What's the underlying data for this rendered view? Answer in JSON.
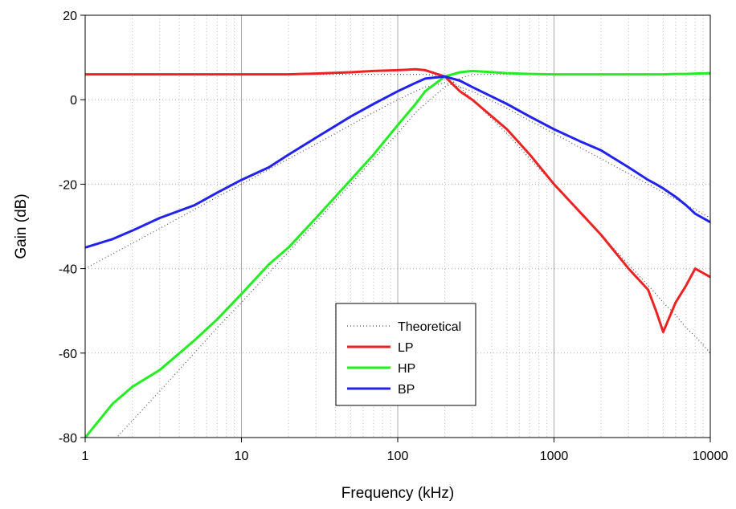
{
  "chart_data": {
    "type": "line",
    "x_label": "Frequency (kHz)",
    "y_label": "Gain (dB)",
    "x": [
      1,
      1.5,
      2,
      3,
      5,
      7,
      10,
      15,
      20,
      30,
      50,
      70,
      100,
      130,
      150,
      200,
      250,
      300,
      500,
      700,
      1000,
      1500,
      2000,
      3000,
      4000,
      4500,
      5000,
      6000,
      7000,
      8000,
      10000
    ],
    "xlim": [
      1,
      10000
    ],
    "xticks": [
      1,
      10,
      100,
      1000,
      10000
    ],
    "xscale": "log",
    "ylim": [
      -80,
      20
    ],
    "yticks": [
      -80,
      -60,
      -40,
      -20,
      0,
      20
    ],
    "grid": true,
    "legend": "lower center",
    "theoretical": {
      "name": "Theoretical",
      "color": "#555555",
      "curves": [
        [
          6,
          6,
          6,
          6,
          6,
          6,
          6,
          6,
          6,
          6,
          6,
          6,
          6,
          6,
          6,
          5.5,
          3,
          0,
          -8,
          -14,
          -20,
          -27,
          -32,
          -39,
          -44,
          -46,
          -48,
          -51,
          -54,
          -56,
          -60
        ],
        [
          -88,
          -81,
          -76,
          -69,
          -60,
          -54,
          -48,
          -41,
          -36,
          -29,
          -20,
          -14,
          -8,
          -3,
          -1,
          3,
          5,
          6,
          6,
          6,
          6,
          6,
          6,
          6,
          6,
          6,
          6,
          6,
          6,
          6,
          6
        ],
        [
          -40,
          -36.5,
          -34,
          -30.5,
          -26,
          -23,
          -20,
          -16.5,
          -14,
          -10.5,
          -6,
          -3,
          0,
          2,
          3,
          4,
          3,
          2,
          -2,
          -5,
          -8,
          -11.5,
          -14,
          -17.5,
          -20,
          -21,
          -22,
          -23.5,
          -25,
          -26,
          -28
        ]
      ]
    },
    "series": [
      {
        "name": "LP",
        "color": "#ee2222",
        "values": [
          6,
          6,
          6,
          6,
          6,
          6,
          6,
          6,
          6,
          6.2,
          6.5,
          6.8,
          7,
          7.2,
          7,
          5.5,
          2,
          0,
          -7,
          -13,
          -20,
          -27,
          -32,
          -40,
          -45,
          -50,
          -55,
          -48,
          -44,
          -40,
          -42
        ]
      },
      {
        "name": "HP",
        "color": "#22ee22",
        "values": [
          -80,
          -72,
          -68,
          -64,
          -57,
          -52,
          -46,
          -39,
          -35,
          -28,
          -19,
          -13,
          -6,
          -1,
          2,
          5.5,
          6.5,
          6.8,
          6.3,
          6.1,
          6,
          6,
          6,
          6,
          6,
          6,
          6,
          6.1,
          6.1,
          6.2,
          6.3
        ]
      },
      {
        "name": "BP",
        "color": "#2222ee",
        "values": [
          -35,
          -33,
          -31,
          -28,
          -25,
          -22,
          -19,
          -16,
          -13,
          -9,
          -4,
          -1,
          2,
          4,
          5,
          5.5,
          4.5,
          3,
          -1,
          -4,
          -7,
          -10,
          -12,
          -16,
          -19,
          -20,
          -21,
          -23,
          -25,
          -27,
          -29
        ]
      }
    ]
  }
}
